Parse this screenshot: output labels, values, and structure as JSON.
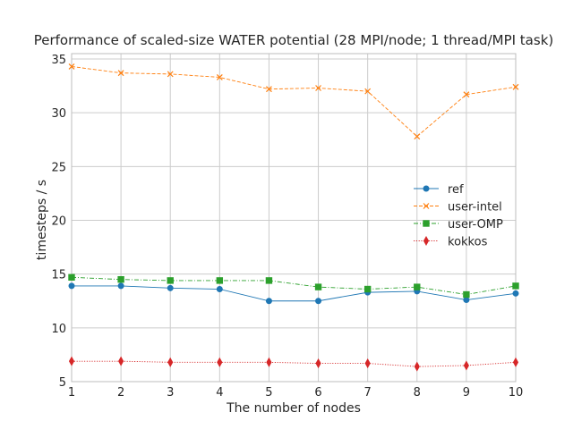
{
  "chart_data": {
    "type": "line",
    "title": "Performance of scaled-size WATER potential (28 MPI/node; 1 thread/MPI task)",
    "xlabel": "The number of nodes",
    "ylabel": "timesteps / s",
    "x": [
      1,
      2,
      3,
      4,
      5,
      6,
      7,
      8,
      9,
      10
    ],
    "xlim": [
      1,
      10
    ],
    "ylim": [
      5,
      35.5
    ],
    "xticks": [
      1,
      2,
      3,
      4,
      5,
      6,
      7,
      8,
      9,
      10
    ],
    "yticks": [
      5,
      10,
      15,
      20,
      25,
      30,
      35
    ],
    "grid": true,
    "legend_position": "center-right",
    "series": [
      {
        "name": "ref",
        "color": "#1f77b4",
        "marker": "circle",
        "linestyle": "solid",
        "values": [
          13.9,
          13.9,
          13.7,
          13.6,
          12.5,
          12.5,
          13.3,
          13.4,
          12.6,
          13.2
        ]
      },
      {
        "name": "user-intel",
        "color": "#ff7f0e",
        "marker": "x",
        "linestyle": "dashed",
        "values": [
          34.3,
          33.7,
          33.6,
          33.3,
          32.2,
          32.3,
          32.0,
          27.8,
          31.7,
          32.4
        ]
      },
      {
        "name": "user-OMP",
        "color": "#2ca02c",
        "marker": "square",
        "linestyle": "dashdot",
        "values": [
          14.7,
          14.5,
          14.4,
          14.4,
          14.4,
          13.8,
          13.6,
          13.8,
          13.1,
          13.9
        ]
      },
      {
        "name": "kokkos",
        "color": "#d62728",
        "marker": "thin_diamond",
        "linestyle": "dotted",
        "values": [
          6.9,
          6.9,
          6.8,
          6.8,
          6.8,
          6.7,
          6.7,
          6.4,
          6.5,
          6.8
        ]
      }
    ]
  }
}
